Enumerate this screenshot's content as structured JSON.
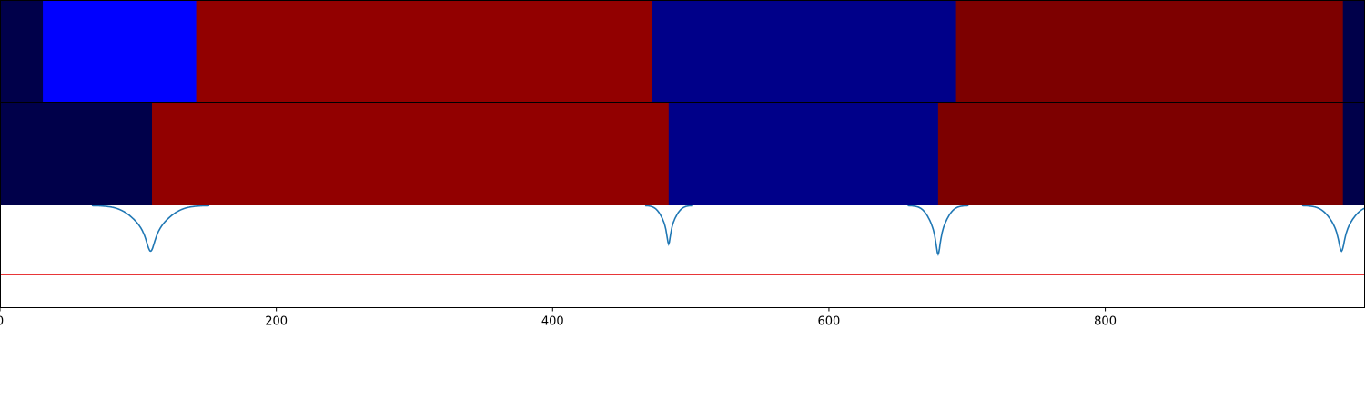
{
  "chart_data": [
    {
      "type": "heatmap",
      "panel": "top",
      "segments": [
        {
          "start": 0,
          "end": 31,
          "color": "#00004a"
        },
        {
          "start": 31,
          "end": 142,
          "color": "#0000ff"
        },
        {
          "start": 142,
          "end": 472,
          "color": "#920000"
        },
        {
          "start": 472,
          "end": 692,
          "color": "#000089"
        },
        {
          "start": 692,
          "end": 972,
          "color": "#7d0000"
        },
        {
          "start": 972,
          "end": 988,
          "color": "#00004a"
        }
      ]
    },
    {
      "type": "heatmap",
      "panel": "middle",
      "segments": [
        {
          "start": 0,
          "end": 110,
          "color": "#00004a"
        },
        {
          "start": 110,
          "end": 484,
          "color": "#920000"
        },
        {
          "start": 484,
          "end": 679,
          "color": "#000089"
        },
        {
          "start": 679,
          "end": 972,
          "color": "#7d0000"
        },
        {
          "start": 972,
          "end": 988,
          "color": "#00004a"
        }
      ]
    },
    {
      "type": "line",
      "panel": "bottom",
      "xlim": [
        0,
        988
      ],
      "ylim": [
        -1.0,
        0.0
      ],
      "threshold": -0.68,
      "threshold_color": "#e41a1c",
      "line_color": "#1f77b4",
      "xticks": [
        0,
        200,
        400,
        600,
        800
      ],
      "dips": [
        {
          "center": 109,
          "depth": -0.45,
          "width": 12
        },
        {
          "center": 484,
          "depth": -0.38,
          "width": 5
        },
        {
          "center": 679,
          "depth": -0.48,
          "width": 6
        },
        {
          "center": 971,
          "depth": -0.45,
          "width": 8
        }
      ]
    }
  ],
  "axis": {
    "tick_labels": [
      "0",
      "200",
      "400",
      "600",
      "800"
    ]
  }
}
